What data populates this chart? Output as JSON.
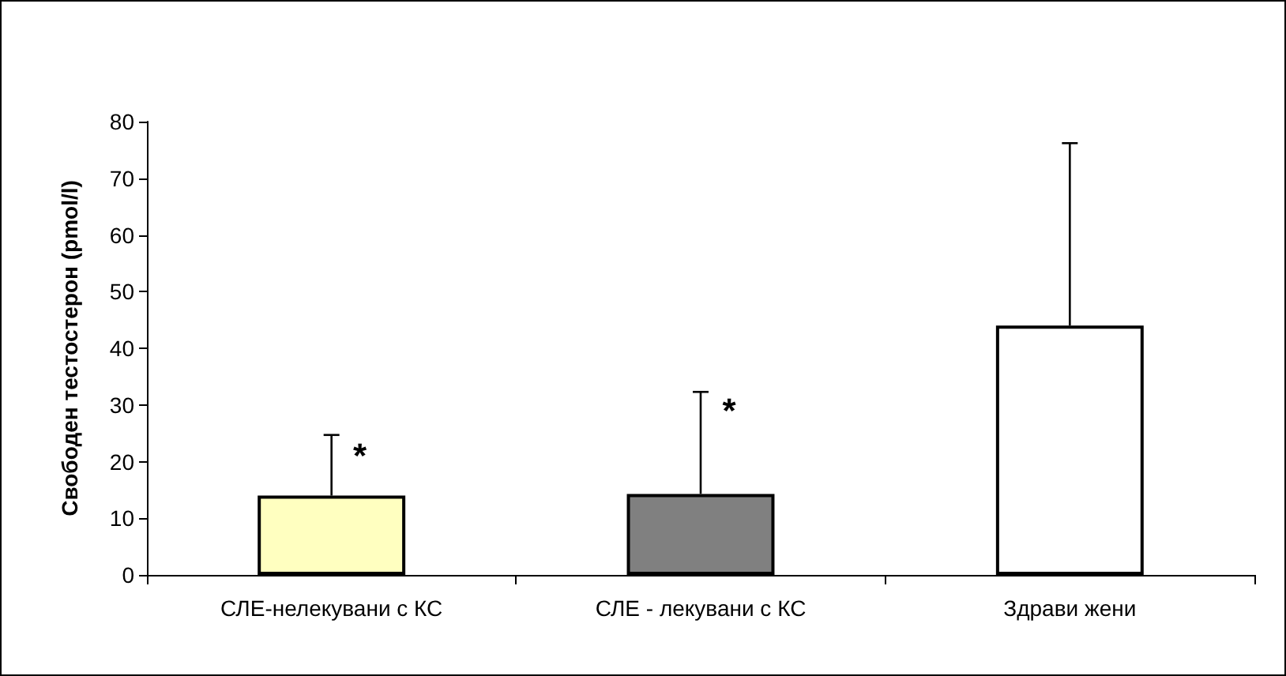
{
  "chart_data": {
    "type": "bar",
    "ylabel": "Свободен тестостерон (pmol/l)",
    "categories": [
      "СЛЕ-нелекувани с КС",
      "СЛЕ - лекувани с КС",
      "Здрави жени"
    ],
    "values": [
      14,
      14.3,
      44
    ],
    "colors": [
      "#ffffc0",
      "#808080",
      "#ffffff"
    ],
    "errors": [
      [
        14,
        24.7
      ],
      [
        14.3,
        32.3
      ],
      [
        44,
        76.2
      ]
    ],
    "ylim": [
      0,
      80
    ],
    "yticks": [
      0,
      10,
      20,
      30,
      40,
      50,
      60,
      70,
      80
    ],
    "grid": false,
    "annotations": [
      {
        "text": "*",
        "x": "СЛЕ-нелекувани с КС",
        "y": 21
      },
      {
        "text": "*",
        "x": "СЛЕ - лекувани с КС",
        "y": 29
      }
    ]
  }
}
